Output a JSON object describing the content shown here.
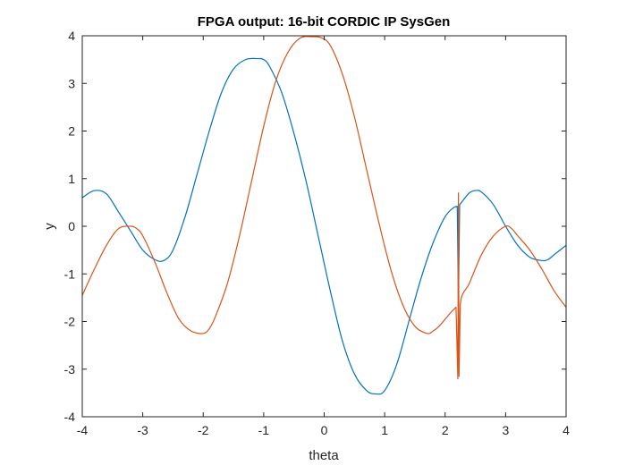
{
  "chart_data": {
    "type": "line",
    "title": "FPGA output: 16-bit CORDIC IP SysGen",
    "xlabel": "theta",
    "ylabel": "y",
    "xlim": [
      -4,
      4
    ],
    "ylim": [
      -4,
      4
    ],
    "grid": false,
    "box": true,
    "xticks": [
      "-4",
      "-3",
      "-2",
      "-1",
      "0",
      "1",
      "2",
      "3",
      "4"
    ],
    "yticks": [
      "4",
      "3",
      "2",
      "1",
      "0",
      "-1",
      "-2",
      "-3",
      "-4"
    ],
    "colors": {
      "series1": "#0072BD",
      "series2": "#D95319",
      "axis": "#262626"
    },
    "series": [
      {
        "color": "#0072BD",
        "x": [
          -4.0,
          -3.8,
          -3.6,
          -3.4,
          -3.2,
          -3.0,
          -2.8,
          -2.65,
          -2.5,
          -2.3,
          -2.1,
          -1.9,
          -1.7,
          -1.5,
          -1.3,
          -1.1,
          -1.0,
          -0.9,
          -0.7,
          -0.5,
          -0.3,
          -0.1,
          0.1,
          0.3,
          0.5,
          0.7,
          0.85,
          1.0,
          1.2,
          1.4,
          1.6,
          1.8,
          2.0,
          2.15,
          2.2,
          2.22,
          2.24,
          2.3,
          2.4,
          2.5,
          2.6,
          2.8,
          3.0,
          3.2,
          3.4,
          3.6,
          3.7,
          3.8,
          3.9,
          4.0
        ],
        "y": [
          0.6,
          0.75,
          0.68,
          0.3,
          -0.1,
          -0.5,
          -0.7,
          -0.72,
          -0.5,
          0.2,
          1.1,
          2.0,
          2.8,
          3.3,
          3.5,
          3.52,
          3.5,
          3.35,
          2.8,
          1.95,
          0.95,
          -0.2,
          -1.35,
          -2.4,
          -3.1,
          -3.45,
          -3.52,
          -3.45,
          -2.9,
          -2.0,
          -1.1,
          -0.35,
          0.2,
          0.4,
          0.42,
          -1.6,
          0.45,
          0.55,
          0.7,
          0.75,
          0.72,
          0.45,
          0.0,
          -0.4,
          -0.65,
          -0.72,
          -0.7,
          -0.6,
          -0.5,
          -0.4
        ]
      },
      {
        "color": "#D95319",
        "x": [
          -4.0,
          -3.8,
          -3.6,
          -3.4,
          -3.2,
          -3.1,
          -3.0,
          -2.8,
          -2.6,
          -2.4,
          -2.2,
          -2.0,
          -1.9,
          -1.8,
          -1.6,
          -1.4,
          -1.2,
          -1.0,
          -0.8,
          -0.6,
          -0.4,
          -0.2,
          -0.05,
          0.1,
          0.3,
          0.5,
          0.7,
          0.9,
          1.1,
          1.3,
          1.5,
          1.7,
          1.8,
          1.9,
          2.1,
          2.18,
          2.21,
          2.22,
          2.23,
          2.25,
          2.4,
          2.6,
          2.8,
          3.0,
          3.1,
          3.2,
          3.4,
          3.6,
          3.8,
          4.0
        ],
        "y": [
          -1.45,
          -0.9,
          -0.4,
          -0.05,
          0.0,
          -0.05,
          -0.2,
          -0.75,
          -1.4,
          -1.95,
          -2.2,
          -2.25,
          -2.15,
          -1.9,
          -1.2,
          -0.2,
          0.95,
          2.1,
          3.05,
          3.65,
          3.95,
          3.98,
          3.96,
          3.8,
          3.2,
          2.3,
          1.2,
          0.1,
          -0.9,
          -1.65,
          -2.1,
          -2.25,
          -2.2,
          -2.1,
          -1.8,
          -1.7,
          -3.2,
          0.7,
          -3.15,
          -1.65,
          -1.2,
          -0.6,
          -0.2,
          0.0,
          -0.05,
          -0.2,
          -0.5,
          -0.9,
          -1.35,
          -1.7
        ]
      }
    ]
  }
}
